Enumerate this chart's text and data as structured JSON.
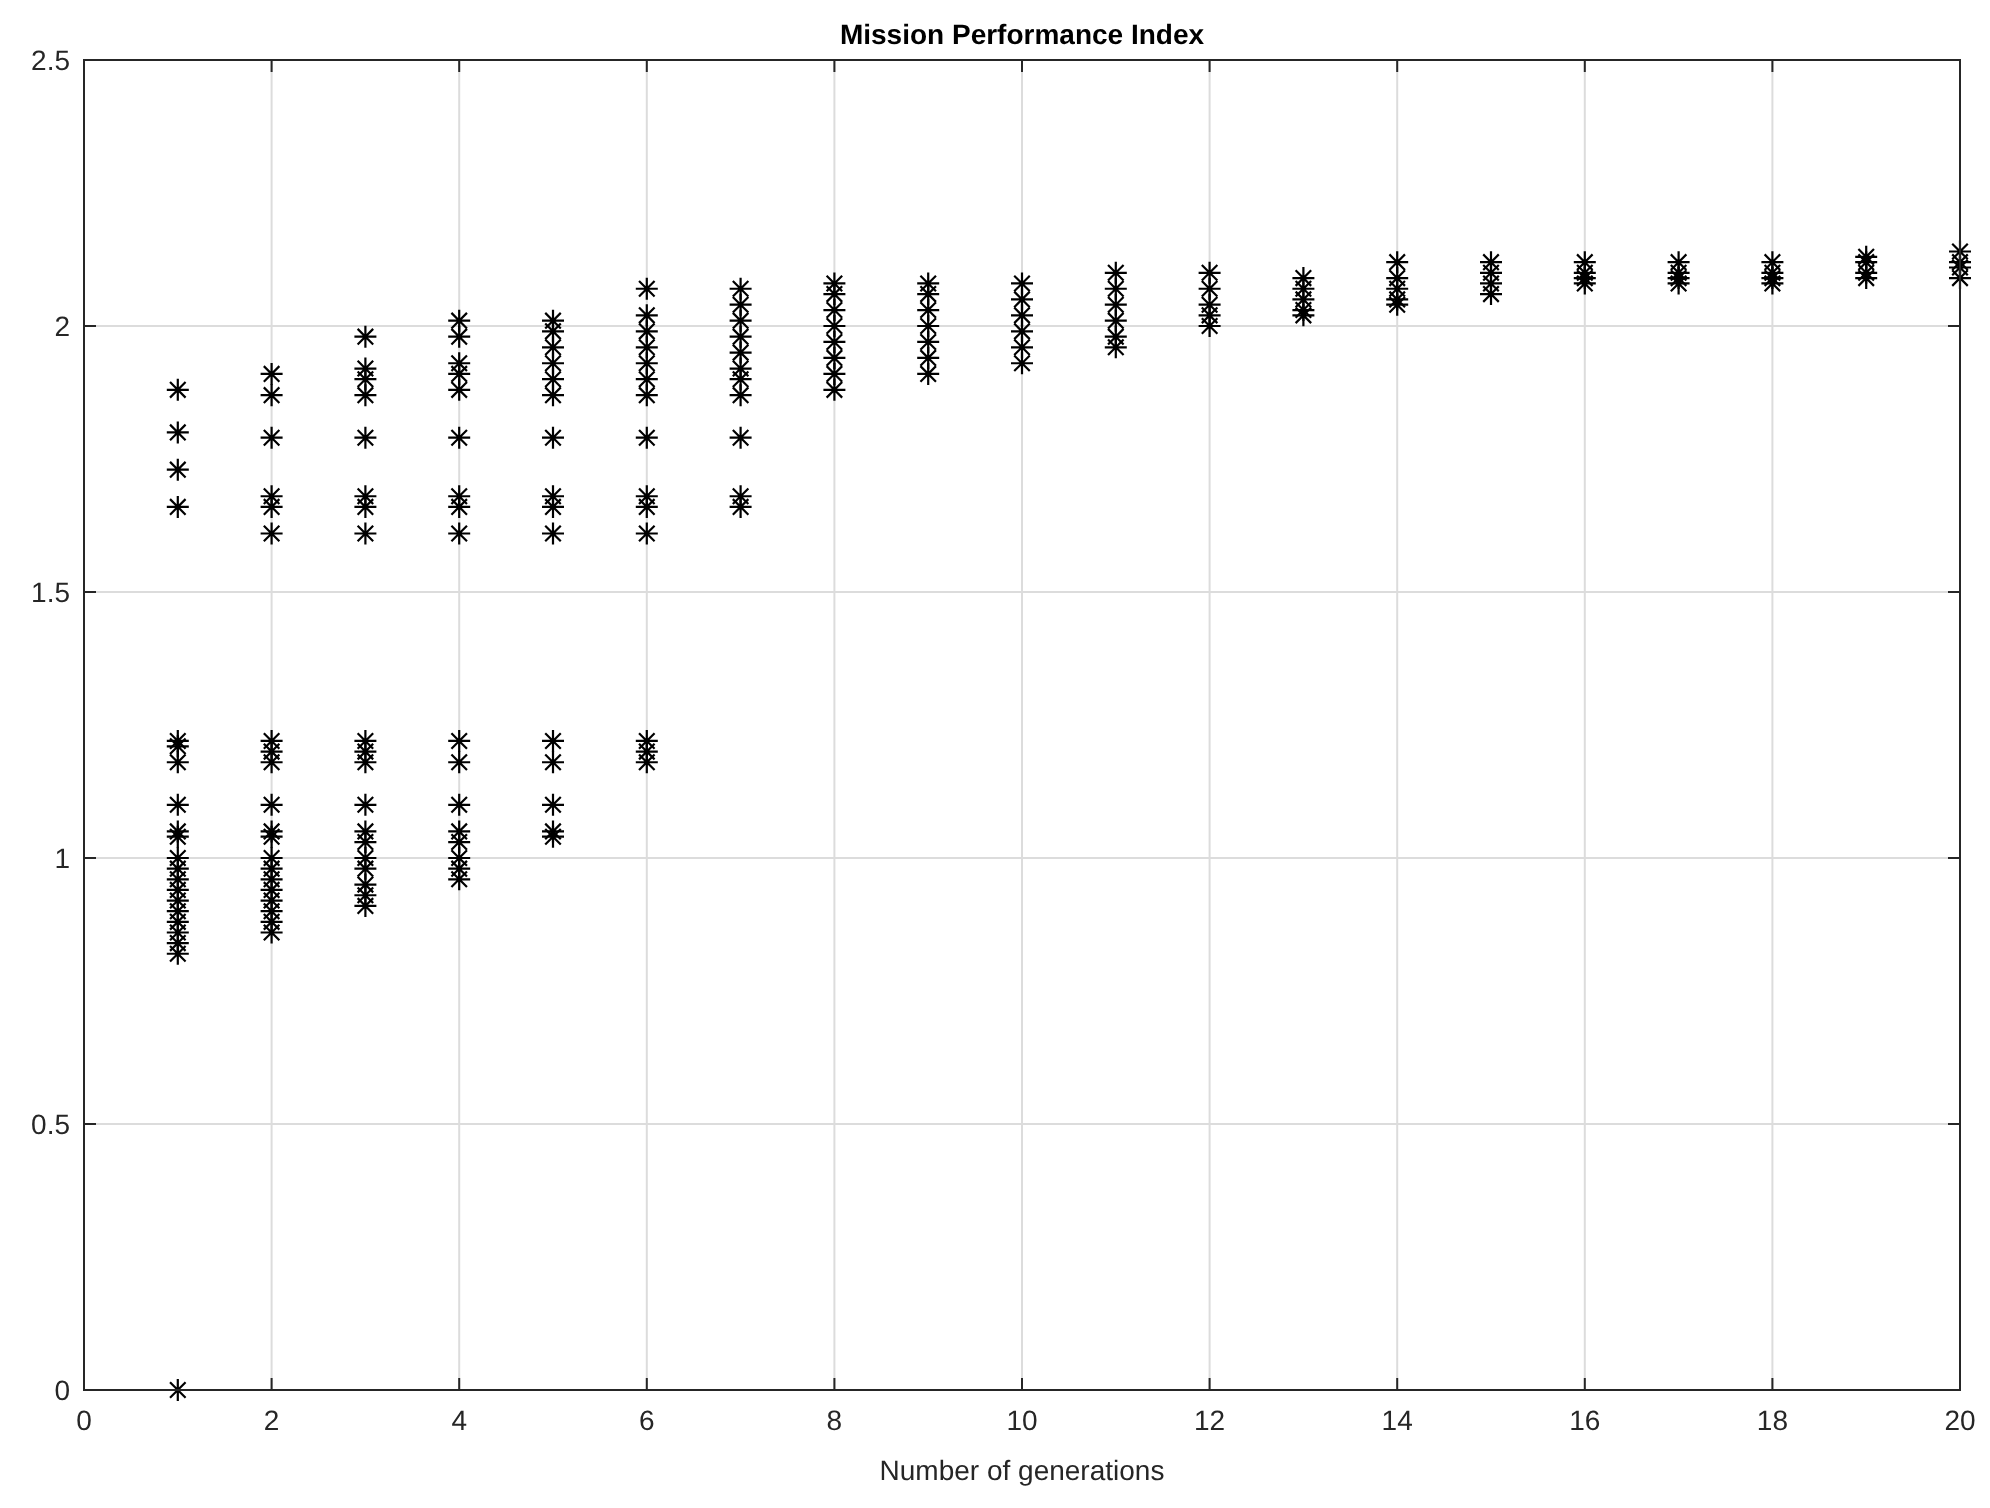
{
  "chart_data": {
    "type": "scatter",
    "title": "Mission Performance Index",
    "xlabel": "Number of generations",
    "xlim": [
      0,
      20
    ],
    "xticks": [
      0,
      2,
      4,
      6,
      8,
      10,
      12,
      14,
      16,
      18,
      20
    ],
    "ylim": [
      0,
      2.5
    ],
    "yticks": [
      0,
      0.5,
      1,
      1.5,
      2,
      2.5
    ],
    "grid": true,
    "marker": "cross",
    "series": [
      {
        "color": "#000000",
        "x": [
          1,
          1,
          1,
          1,
          1,
          1,
          1,
          1,
          1,
          1,
          1,
          1,
          1,
          1,
          1,
          1,
          1,
          1,
          1,
          1,
          1,
          2,
          2,
          2,
          2,
          2,
          2,
          2,
          2,
          2,
          2,
          2,
          2,
          2,
          2,
          2,
          2,
          2,
          2,
          2,
          2,
          3,
          3,
          3,
          3,
          3,
          3,
          3,
          3,
          3,
          3,
          3,
          3,
          3,
          3,
          3,
          3,
          3,
          3,
          3,
          4,
          4,
          4,
          4,
          4,
          4,
          4,
          4,
          4,
          4,
          4,
          4,
          4,
          4,
          4,
          4,
          4,
          5,
          5,
          5,
          5,
          5,
          5,
          5,
          5,
          5,
          5,
          5,
          5,
          5,
          5,
          5,
          6,
          6,
          6,
          6,
          6,
          6,
          6,
          6,
          6,
          6,
          6,
          6,
          6,
          6,
          7,
          7,
          7,
          7,
          7,
          7,
          7,
          7,
          7,
          7,
          7,
          8,
          8,
          8,
          8,
          8,
          8,
          8,
          8,
          9,
          9,
          9,
          9,
          9,
          9,
          9,
          10,
          10,
          10,
          10,
          10,
          10,
          11,
          11,
          11,
          11,
          11,
          11,
          12,
          12,
          12,
          12,
          12,
          13,
          13,
          13,
          13,
          13,
          14,
          14,
          14,
          14,
          14,
          15,
          15,
          15,
          15,
          16,
          16,
          16,
          16,
          17,
          17,
          17,
          17,
          18,
          18,
          18,
          18,
          19,
          19,
          19,
          19,
          20,
          20,
          20,
          20
        ],
        "values": [
          1.88,
          1.8,
          1.73,
          1.66,
          1.22,
          1.21,
          1.18,
          1.1,
          1.05,
          1.04,
          1.0,
          0.98,
          0.96,
          0.94,
          0.92,
          0.9,
          0.88,
          0.86,
          0.84,
          0.82,
          0,
          1.91,
          1.87,
          1.79,
          1.68,
          1.66,
          1.61,
          1.22,
          1.2,
          1.18,
          1.1,
          1.05,
          1.04,
          1.0,
          0.98,
          0.96,
          0.94,
          0.92,
          0.9,
          0.88,
          0.86,
          1.98,
          1.92,
          1.9,
          1.87,
          1.79,
          1.68,
          1.66,
          1.61,
          1.22,
          1.2,
          1.18,
          1.1,
          1.05,
          1.03,
          1.0,
          0.98,
          0.95,
          0.93,
          0.91,
          2.01,
          1.98,
          1.93,
          1.91,
          1.88,
          1.79,
          1.68,
          1.66,
          1.61,
          1.22,
          1.18,
          1.1,
          1.05,
          1.03,
          1.0,
          0.98,
          0.96,
          2.01,
          1.99,
          1.96,
          1.93,
          1.9,
          1.87,
          1.79,
          1.68,
          1.66,
          1.61,
          1.22,
          1.18,
          1.1,
          1.05,
          1.04,
          2.07,
          2.02,
          1.99,
          1.96,
          1.93,
          1.9,
          1.87,
          1.79,
          1.68,
          1.66,
          1.61,
          1.22,
          1.2,
          1.18,
          2.07,
          2.04,
          2.01,
          1.98,
          1.95,
          1.92,
          1.9,
          1.87,
          1.79,
          1.68,
          1.66,
          2.08,
          2.06,
          2.03,
          2.0,
          1.97,
          1.94,
          1.91,
          1.88,
          2.08,
          2.06,
          2.03,
          2.0,
          1.97,
          1.94,
          1.91,
          2.08,
          2.05,
          2.02,
          1.99,
          1.96,
          1.93,
          2.1,
          2.07,
          2.04,
          2.01,
          1.98,
          1.96,
          2.1,
          2.07,
          2.04,
          2.02,
          2.0,
          2.09,
          2.07,
          2.05,
          2.03,
          2.02,
          2.12,
          2.09,
          2.07,
          2.05,
          2.04,
          2.12,
          2.1,
          2.08,
          2.06,
          2.12,
          2.1,
          2.09,
          2.08,
          2.12,
          2.1,
          2.09,
          2.08,
          2.12,
          2.1,
          2.09,
          2.08,
          2.13,
          2.12,
          2.1,
          2.09,
          2.14,
          2.12,
          2.11,
          2.09
        ]
      }
    ]
  }
}
